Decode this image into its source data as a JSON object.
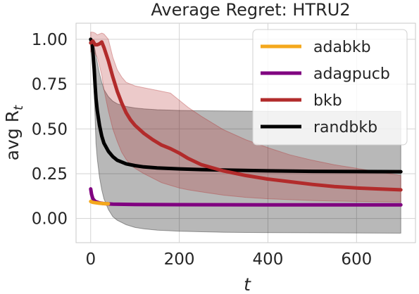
{
  "chart_data": {
    "type": "line",
    "title": "Average Regret: HTRU2",
    "xlabel": "t",
    "ylabel_main": "avg R",
    "ylabel_sub": "t",
    "xlim": [
      -33,
      733
    ],
    "ylim": [
      -0.135,
      1.09
    ],
    "xticks": [
      0,
      200,
      400,
      600
    ],
    "xtick_labels": [
      "0",
      "200",
      "400",
      "600"
    ],
    "yticks": [
      0.0,
      0.25,
      0.5,
      0.75,
      1.0
    ],
    "ytick_labels": [
      "0.00",
      "0.25",
      "0.50",
      "0.75",
      "1.00"
    ],
    "grid": true,
    "legend_position": "top-right",
    "series": [
      {
        "name": "adabkb",
        "color": "#f4a81d",
        "x": [
          0,
          5,
          10,
          20,
          30,
          40
        ],
        "y": [
          0.095,
          0.09,
          0.088,
          0.085,
          0.083,
          0.082
        ],
        "band": null
      },
      {
        "name": "adagpucb",
        "color": "#800080",
        "x": [
          0,
          2,
          5,
          10,
          20,
          30,
          50,
          100,
          200,
          400,
          700
        ],
        "y": [
          0.165,
          0.135,
          0.11,
          0.095,
          0.087,
          0.083,
          0.08,
          0.078,
          0.077,
          0.076,
          0.076
        ],
        "band": null
      },
      {
        "name": "bkb",
        "color": "#b22b2b",
        "x": [
          0,
          5,
          10,
          15,
          20,
          25,
          30,
          40,
          50,
          60,
          70,
          80,
          90,
          100,
          120,
          140,
          160,
          180,
          200,
          220,
          250,
          300,
          350,
          400,
          450,
          500,
          550,
          600,
          650,
          700
        ],
        "y": [
          0.98,
          0.99,
          0.97,
          0.97,
          0.975,
          0.985,
          0.955,
          0.88,
          0.79,
          0.71,
          0.645,
          0.59,
          0.55,
          0.52,
          0.475,
          0.44,
          0.41,
          0.39,
          0.365,
          0.335,
          0.3,
          0.265,
          0.24,
          0.22,
          0.205,
          0.19,
          0.178,
          0.17,
          0.165,
          0.16
        ],
        "band": {
          "color": "#b22b2b",
          "opacity": 0.25,
          "upper": [
            1.04,
            1.04,
            1.035,
            1.025,
            1.03,
            1.035,
            1.03,
            1.0,
            0.9,
            0.83,
            0.79,
            0.76,
            0.75,
            0.74,
            0.73,
            0.72,
            0.71,
            0.7,
            0.66,
            0.62,
            0.57,
            0.495,
            0.44,
            0.395,
            0.355,
            0.325,
            0.3,
            0.28,
            0.26,
            0.24
          ],
          "lower": [
            0.93,
            0.94,
            0.92,
            0.9,
            0.85,
            0.8,
            0.72,
            0.6,
            0.5,
            0.43,
            0.37,
            0.33,
            0.3,
            0.28,
            0.25,
            0.225,
            0.2,
            0.185,
            0.17,
            0.16,
            0.148,
            0.13,
            0.118,
            0.11,
            0.105,
            0.1,
            0.097,
            0.095,
            0.093,
            0.092
          ]
        }
      },
      {
        "name": "randbkb",
        "color": "#000000",
        "x": [
          0,
          3,
          5,
          8,
          10,
          12,
          15,
          20,
          25,
          30,
          40,
          50,
          60,
          80,
          100,
          120,
          150,
          200,
          250,
          300,
          400,
          500,
          600,
          700
        ],
        "y": [
          1.0,
          0.98,
          0.93,
          0.83,
          0.74,
          0.67,
          0.6,
          0.52,
          0.46,
          0.42,
          0.375,
          0.345,
          0.325,
          0.305,
          0.295,
          0.288,
          0.282,
          0.277,
          0.273,
          0.27,
          0.266,
          0.263,
          0.262,
          0.261
        ],
        "band": {
          "color": "#000000",
          "opacity": 0.28,
          "upper": [
            1.0,
            0.99,
            0.98,
            0.96,
            0.94,
            0.91,
            0.87,
            0.81,
            0.76,
            0.72,
            0.68,
            0.655,
            0.64,
            0.625,
            0.617,
            0.612,
            0.607,
            0.603,
            0.601,
            0.6,
            0.599,
            0.598,
            0.598,
            0.598
          ],
          "lower": [
            0.99,
            0.97,
            0.88,
            0.7,
            0.55,
            0.42,
            0.33,
            0.23,
            0.16,
            0.11,
            0.05,
            0.01,
            -0.01,
            -0.035,
            -0.05,
            -0.058,
            -0.065,
            -0.071,
            -0.074,
            -0.077,
            -0.079,
            -0.08,
            -0.081,
            -0.082
          ]
        }
      }
    ]
  }
}
